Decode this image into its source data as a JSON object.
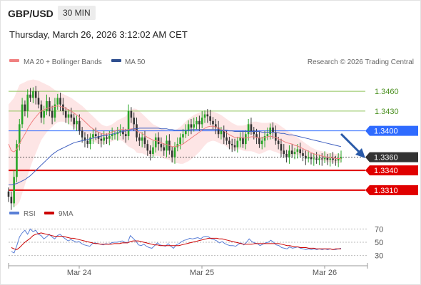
{
  "header": {
    "symbol": "GBP/USD",
    "timeframe": "30 MIN",
    "datetime": "Thursday, March 26, 2026 3:12:02 AM CET"
  },
  "legend": {
    "ma20_label": "MA 20 + Bollinger Bands",
    "ma50_label": "MA 50",
    "credit": "Research © 2026 Trading Central",
    "rsi_label": "RSI",
    "rsi_ma_label": "9MA"
  },
  "colors": {
    "ma20": "#f08080",
    "ma50": "#4060c0",
    "bb_fill": "#fde2e2",
    "resistance": "#8fc45a",
    "pivot": "#2f6bff",
    "support": "#e00000",
    "candle_up": "#26a626",
    "candle_down": "#333333",
    "rsi": "#5a7fd6",
    "rsi_ma": "#cc0000"
  },
  "chart_data": [
    {
      "type": "candlestick",
      "title": "GBP/USD 30 MIN",
      "x_tick_labels": [
        "Mar 24",
        "Mar 25",
        "Mar 26"
      ],
      "ylim": [
        1.3285,
        1.3485
      ],
      "levels": [
        {
          "value": 1.346,
          "label": "1.3460",
          "kind": "resistance"
        },
        {
          "value": 1.343,
          "label": "1.3430",
          "kind": "resistance"
        },
        {
          "value": 1.34,
          "label": "1.3400",
          "kind": "pivot"
        },
        {
          "value": 1.336,
          "label": "1.3360",
          "kind": "last"
        },
        {
          "value": 1.334,
          "label": "1.3340",
          "kind": "support"
        },
        {
          "value": 1.331,
          "label": "1.3310",
          "kind": "support"
        }
      ],
      "close": [
        1.33,
        1.329,
        1.333,
        1.338,
        1.341,
        1.344,
        1.343,
        1.3455,
        1.345,
        1.346,
        1.345,
        1.344,
        1.342,
        1.343,
        1.3445,
        1.343,
        1.342,
        1.344,
        1.345,
        1.344,
        1.343,
        1.342,
        1.3425,
        1.342,
        1.341,
        1.3415,
        1.34,
        1.339,
        1.3385,
        1.338,
        1.339,
        1.3395,
        1.3392,
        1.3388,
        1.3385,
        1.339,
        1.3388,
        1.3392,
        1.3395,
        1.3395,
        1.3398,
        1.34,
        1.3395,
        1.3392,
        1.343,
        1.342,
        1.341,
        1.339,
        1.3385,
        1.339,
        1.338,
        1.337,
        1.3365,
        1.3375,
        1.339,
        1.338,
        1.3375,
        1.337,
        1.3385,
        1.337,
        1.336,
        1.3375,
        1.338,
        1.339,
        1.3395,
        1.34,
        1.341,
        1.3405,
        1.341,
        1.3415,
        1.341,
        1.342,
        1.3425,
        1.3422,
        1.3415,
        1.341,
        1.3405,
        1.3395,
        1.34,
        1.339,
        1.3385,
        1.338,
        1.3378,
        1.3375,
        1.3385,
        1.339,
        1.338,
        1.3395,
        1.341,
        1.34,
        1.3395,
        1.339,
        1.338,
        1.3385,
        1.3392,
        1.3395,
        1.3405,
        1.3398,
        1.3385,
        1.338,
        1.337,
        1.3365,
        1.336,
        1.337,
        1.3365,
        1.3368,
        1.3372,
        1.3366,
        1.3362,
        1.3358,
        1.336,
        1.3357,
        1.3358,
        1.3356,
        1.3358,
        1.3357,
        1.3359,
        1.3356,
        1.3358,
        1.3356,
        1.3355,
        1.3358,
        1.336
      ],
      "ma20": [
        1.338,
        1.337,
        1.3368,
        1.3372,
        1.338,
        1.3388,
        1.3395,
        1.3403,
        1.341,
        1.3416,
        1.3421,
        1.3426,
        1.343,
        1.3432,
        1.3434,
        1.3435,
        1.3436,
        1.3437,
        1.3438,
        1.3437,
        1.3436,
        1.3434,
        1.3432,
        1.343,
        1.3427,
        1.3424,
        1.3421,
        1.3418,
        1.3414,
        1.341,
        1.3406,
        1.3403,
        1.34,
        1.3398,
        1.3396,
        1.3395,
        1.3395,
        1.3396,
        1.3398,
        1.34,
        1.3401,
        1.3402,
        1.3402,
        1.3401,
        1.3402,
        1.3403,
        1.3403,
        1.34,
        1.3398,
        1.3396,
        1.3393,
        1.339,
        1.3388,
        1.3386,
        1.3385,
        1.3384,
        1.3382,
        1.338,
        1.3379,
        1.3378,
        1.3376,
        1.3376,
        1.3377,
        1.3378,
        1.338,
        1.3383,
        1.3386,
        1.3389,
        1.3392,
        1.3395,
        1.3398,
        1.3401,
        1.3404,
        1.3406,
        1.3407,
        1.3407,
        1.3406,
        1.3404,
        1.3402,
        1.34,
        1.3397,
        1.3394,
        1.3392,
        1.339,
        1.339,
        1.339,
        1.3389,
        1.3389,
        1.339,
        1.3391,
        1.3391,
        1.339,
        1.3389,
        1.3389,
        1.339,
        1.3391,
        1.3392,
        1.3391,
        1.339,
        1.3388,
        1.3386,
        1.3384,
        1.3382,
        1.3381,
        1.338,
        1.3378,
        1.3377,
        1.3375,
        1.3373,
        1.3371,
        1.3369,
        1.3367,
        1.3365,
        1.3364,
        1.3363,
        1.3362,
        1.3361,
        1.336,
        1.3359,
        1.3359,
        1.3358,
        1.3358,
        1.3358
      ],
      "bb_upper": [
        1.344,
        1.3445,
        1.345,
        1.346,
        1.347,
        1.3472,
        1.3474,
        1.3476,
        1.3477,
        1.3478,
        1.3477,
        1.3476,
        1.3474,
        1.3472,
        1.347,
        1.3468,
        1.3465,
        1.3462,
        1.346,
        1.3458,
        1.3456,
        1.3454,
        1.3452,
        1.345,
        1.3447,
        1.3444,
        1.3441,
        1.3438,
        1.3434,
        1.343,
        1.3426,
        1.3422,
        1.3418,
        1.3414,
        1.341,
        1.3408,
        1.3407,
        1.3408,
        1.341,
        1.3413,
        1.3416,
        1.3418,
        1.342,
        1.3422,
        1.3428,
        1.3432,
        1.3434,
        1.3433,
        1.343,
        1.3426,
        1.3422,
        1.3418,
        1.3414,
        1.341,
        1.3408,
        1.3406,
        1.3404,
        1.3402,
        1.3401,
        1.34,
        1.34,
        1.3401,
        1.3403,
        1.3406,
        1.341,
        1.3414,
        1.3418,
        1.3421,
        1.3424,
        1.3426,
        1.3428,
        1.3429,
        1.343,
        1.343,
        1.343,
        1.3429,
        1.3428,
        1.3426,
        1.3424,
        1.3421,
        1.3418,
        1.3415,
        1.3412,
        1.341,
        1.3408,
        1.3408,
        1.3408,
        1.3409,
        1.3411,
        1.3413,
        1.3414,
        1.3414,
        1.3413,
        1.3412,
        1.3412,
        1.3412,
        1.3413,
        1.3413,
        1.3412,
        1.341,
        1.3407,
        1.3404,
        1.3401,
        1.3398,
        1.3396,
        1.3393,
        1.339,
        1.3387,
        1.3384,
        1.3381,
        1.3378,
        1.3375,
        1.3373,
        1.3371,
        1.337,
        1.3369,
        1.3368,
        1.3367,
        1.3366,
        1.3366,
        1.3365,
        1.3365,
        1.3365
      ],
      "bb_lower": [
        1.332,
        1.3295,
        1.3285,
        1.3287,
        1.3292,
        1.3305,
        1.3318,
        1.3332,
        1.3345,
        1.3356,
        1.3366,
        1.3376,
        1.3386,
        1.3392,
        1.3398,
        1.3402,
        1.3406,
        1.341,
        1.3413,
        1.3414,
        1.3414,
        1.3413,
        1.3411,
        1.3408,
        1.3405,
        1.3402,
        1.3399,
        1.3396,
        1.3393,
        1.339,
        1.3386,
        1.3384,
        1.3382,
        1.338,
        1.338,
        1.338,
        1.3381,
        1.3382,
        1.3384,
        1.3386,
        1.3386,
        1.3386,
        1.3384,
        1.338,
        1.3376,
        1.3374,
        1.3372,
        1.3367,
        1.3366,
        1.3366,
        1.3364,
        1.3362,
        1.3362,
        1.3362,
        1.3362,
        1.3362,
        1.336,
        1.3358,
        1.3357,
        1.3356,
        1.3352,
        1.3351,
        1.3351,
        1.335,
        1.335,
        1.3352,
        1.3354,
        1.3357,
        1.336,
        1.3364,
        1.3368,
        1.3373,
        1.3378,
        1.3382,
        1.3384,
        1.3385,
        1.3384,
        1.3382,
        1.338,
        1.3379,
        1.3376,
        1.3373,
        1.3372,
        1.337,
        1.3372,
        1.3372,
        1.337,
        1.3369,
        1.3369,
        1.3369,
        1.3368,
        1.3366,
        1.3365,
        1.3366,
        1.3368,
        1.337,
        1.3371,
        1.3369,
        1.3368,
        1.3366,
        1.3365,
        1.3364,
        1.3363,
        1.3364,
        1.3364,
        1.3363,
        1.3364,
        1.3363,
        1.3362,
        1.3361,
        1.336,
        1.3359,
        1.3357,
        1.3357,
        1.3356,
        1.3355,
        1.3354,
        1.3353,
        1.3352,
        1.3352,
        1.3351,
        1.3351,
        1.3351
      ],
      "ma50": [
        1.3318,
        1.3318,
        1.3319,
        1.332,
        1.3322,
        1.3324,
        1.3326,
        1.3329,
        1.3332,
        1.3336,
        1.334,
        1.3344,
        1.3348,
        1.3352,
        1.3356,
        1.336,
        1.3364,
        1.3367,
        1.337,
        1.3372,
        1.3374,
        1.3376,
        1.3378,
        1.338,
        1.3382,
        1.3383,
        1.3384,
        1.3385,
        1.3386,
        1.3387,
        1.3388,
        1.3389,
        1.339,
        1.3391,
        1.3392,
        1.3393,
        1.3393,
        1.3394,
        1.3395,
        1.3396,
        1.3397,
        1.3398,
        1.3399,
        1.34,
        1.3401,
        1.3402,
        1.3403,
        1.3403,
        1.3404,
        1.3404,
        1.3404,
        1.3404,
        1.3404,
        1.3404,
        1.3404,
        1.3404,
        1.3403,
        1.3403,
        1.3403,
        1.3402,
        1.3402,
        1.3401,
        1.3401,
        1.3401,
        1.3401,
        1.3401,
        1.3401,
        1.3402,
        1.3402,
        1.3402,
        1.3402,
        1.3402,
        1.3402,
        1.3402,
        1.3402,
        1.3402,
        1.3402,
        1.3402,
        1.3401,
        1.3401,
        1.3401,
        1.34,
        1.34,
        1.3399,
        1.3399,
        1.3399,
        1.3399,
        1.3399,
        1.3399,
        1.3399,
        1.3399,
        1.3399,
        1.3399,
        1.3398,
        1.3398,
        1.3398,
        1.3398,
        1.3398,
        1.3397,
        1.3397,
        1.3396,
        1.3396,
        1.3395,
        1.3394,
        1.3394,
        1.3393,
        1.3392,
        1.3391,
        1.339,
        1.3389,
        1.3388,
        1.3387,
        1.3386,
        1.3385,
        1.3384,
        1.3383,
        1.3382,
        1.3381,
        1.338,
        1.3379,
        1.3378,
        1.3377,
        1.3376
      ]
    },
    {
      "type": "line",
      "title": "RSI",
      "y_tick_labels": [
        "70",
        "50",
        "30"
      ],
      "ylim": [
        20,
        80
      ],
      "series": [
        {
          "name": "RSI",
          "values": [
            36,
            34,
            45,
            58,
            64,
            68,
            62,
            70,
            66,
            68,
            62,
            60,
            55,
            58,
            62,
            58,
            55,
            60,
            62,
            58,
            55,
            52,
            54,
            52,
            50,
            51,
            48,
            46,
            45,
            44,
            48,
            49,
            48,
            47,
            46,
            48,
            47,
            49,
            50,
            50,
            51,
            52,
            50,
            49,
            60,
            56,
            52,
            46,
            45,
            47,
            44,
            42,
            41,
            45,
            49,
            46,
            45,
            44,
            48,
            44,
            41,
            46,
            48,
            51,
            53,
            54,
            56,
            55,
            56,
            57,
            55,
            58,
            59,
            58,
            55,
            54,
            52,
            49,
            51,
            48,
            46,
            45,
            45,
            44,
            47,
            49,
            46,
            50,
            55,
            51,
            49,
            48,
            45,
            47,
            49,
            50,
            53,
            50,
            46,
            45,
            42,
            41,
            40,
            43,
            41,
            42,
            43,
            41,
            40,
            39,
            40,
            39,
            40,
            39,
            40,
            39,
            40,
            39,
            40,
            39,
            39,
            40,
            41
          ]
        },
        {
          "name": "9MA",
          "values": [
            42,
            40,
            39,
            42,
            46,
            50,
            53,
            56,
            60,
            62,
            63,
            64,
            63,
            62,
            61,
            60,
            59,
            59,
            59,
            59,
            58,
            57,
            56,
            56,
            55,
            54,
            53,
            52,
            51,
            50,
            49,
            48,
            48,
            47,
            47,
            47,
            47,
            47,
            48,
            48,
            48,
            49,
            49,
            49,
            51,
            52,
            52,
            52,
            51,
            50,
            49,
            48,
            47,
            46,
            46,
            45,
            45,
            45,
            45,
            45,
            45,
            45,
            45,
            46,
            47,
            48,
            49,
            50,
            51,
            52,
            53,
            54,
            55,
            56,
            56,
            56,
            56,
            55,
            55,
            54,
            53,
            52,
            51,
            50,
            49,
            48,
            47,
            47,
            47,
            47,
            48,
            48,
            48,
            48,
            48,
            48,
            48,
            48,
            48,
            48,
            47,
            46,
            45,
            45,
            44,
            43,
            43,
            42,
            42,
            42,
            41,
            41,
            41,
            40,
            40,
            40,
            40,
            40,
            40,
            39,
            40,
            40,
            40
          ]
        }
      ]
    }
  ]
}
